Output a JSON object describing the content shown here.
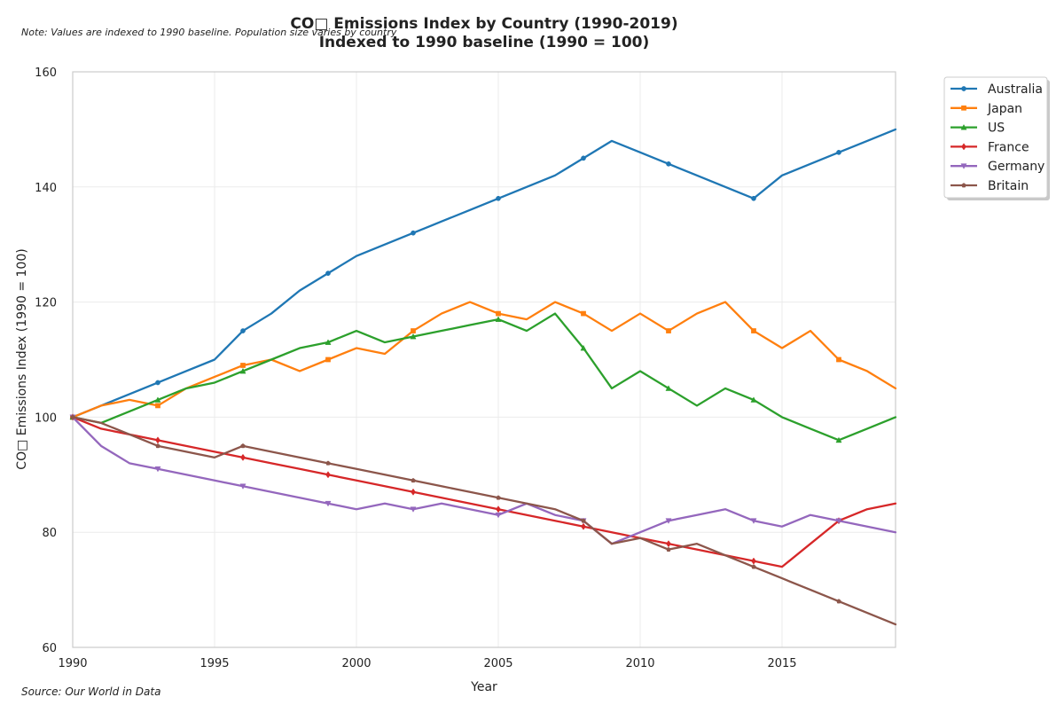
{
  "chart_data": {
    "type": "line",
    "title": "CO□ Emissions Index by Country (1990-2019)",
    "subtitle": "Indexed to 1990 baseline (1990 = 100)",
    "note": "Note: Values are indexed to 1990 baseline. Population size varies by country",
    "source": "Source: Our World in Data",
    "xlabel": "Year",
    "ylabel": "CO□ Emissions Index (1990 = 100)",
    "xlim": [
      1990,
      2019
    ],
    "ylim": [
      60,
      160
    ],
    "xticks": [
      1990,
      1995,
      2000,
      2005,
      2010,
      2015
    ],
    "yticks": [
      60,
      80,
      100,
      120,
      140,
      160
    ],
    "grid": true,
    "legend_position": "outside top-right",
    "x": [
      1990,
      1991,
      1992,
      1993,
      1994,
      1995,
      1996,
      1997,
      1998,
      1999,
      2000,
      2001,
      2002,
      2003,
      2004,
      2005,
      2006,
      2007,
      2008,
      2009,
      2010,
      2011,
      2012,
      2013,
      2014,
      2015,
      2016,
      2017,
      2018,
      2019
    ],
    "series": [
      {
        "name": "Australia",
        "color": "#1f77b4",
        "marker": "circle",
        "values": [
          100,
          102,
          104,
          106,
          108,
          110,
          115,
          118,
          122,
          125,
          128,
          130,
          132,
          134,
          136,
          138,
          140,
          142,
          145,
          148,
          146,
          144,
          142,
          140,
          138,
          142,
          144,
          146,
          148,
          150
        ]
      },
      {
        "name": "Japan",
        "color": "#ff7f0e",
        "marker": "square",
        "values": [
          100,
          102,
          103,
          102,
          105,
          107,
          109,
          110,
          108,
          110,
          112,
          111,
          115,
          118,
          120,
          118,
          117,
          120,
          118,
          115,
          118,
          115,
          118,
          120,
          115,
          112,
          115,
          110,
          108,
          105
        ]
      },
      {
        "name": "US",
        "color": "#2ca02c",
        "marker": "triangle-up",
        "values": [
          100,
          99,
          101,
          103,
          105,
          106,
          108,
          110,
          112,
          113,
          115,
          113,
          114,
          115,
          116,
          117,
          115,
          118,
          112,
          105,
          108,
          105,
          102,
          105,
          103,
          100,
          98,
          96,
          98,
          100
        ]
      },
      {
        "name": "France",
        "color": "#d62728",
        "marker": "diamond",
        "values": [
          100,
          98,
          97,
          96,
          95,
          94,
          93,
          92,
          91,
          90,
          89,
          88,
          87,
          86,
          85,
          84,
          83,
          82,
          81,
          80,
          79,
          78,
          77,
          76,
          75,
          74,
          78,
          82,
          84,
          85
        ]
      },
      {
        "name": "Germany",
        "color": "#9467bd",
        "marker": "triangle-down",
        "values": [
          100,
          95,
          92,
          91,
          90,
          89,
          88,
          87,
          86,
          85,
          84,
          85,
          84,
          85,
          84,
          83,
          85,
          83,
          82,
          78,
          80,
          82,
          83,
          84,
          82,
          81,
          83,
          82,
          81,
          80
        ]
      },
      {
        "name": "Britain",
        "color": "#8c564b",
        "marker": "pentagon",
        "values": [
          100,
          99,
          97,
          95,
          94,
          93,
          95,
          94,
          93,
          92,
          91,
          90,
          89,
          88,
          87,
          86,
          85,
          84,
          82,
          78,
          79,
          77,
          78,
          76,
          74,
          72,
          70,
          68,
          66,
          64
        ]
      }
    ]
  }
}
